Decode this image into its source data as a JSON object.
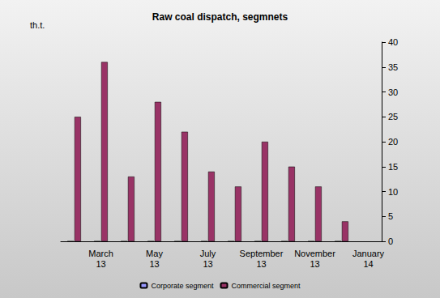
{
  "chart_data": {
    "type": "bar",
    "title": "Raw coal dispatch, segmnets",
    "ylabel": "th.t.",
    "categories": [
      null,
      "March\n13",
      null,
      "May\n13",
      null,
      "July\n13",
      null,
      "September\n13",
      null,
      "November\n13",
      null,
      "January\n14"
    ],
    "series": [
      {
        "name": "Corporate segment",
        "color": "#9999ff",
        "values": [
          0,
          0,
          0,
          0,
          0,
          0,
          0,
          0,
          0,
          0,
          0,
          null
        ]
      },
      {
        "name": "Commercial segment",
        "color": "#993366",
        "values": [
          25,
          36,
          13,
          28,
          22,
          14,
          11,
          20,
          15,
          11,
          4,
          null
        ]
      }
    ],
    "ylim": [
      0,
      40
    ],
    "yticks": [
      0,
      5,
      10,
      15,
      20,
      25,
      30,
      35,
      40
    ],
    "grid": false,
    "legend": "bottom"
  }
}
